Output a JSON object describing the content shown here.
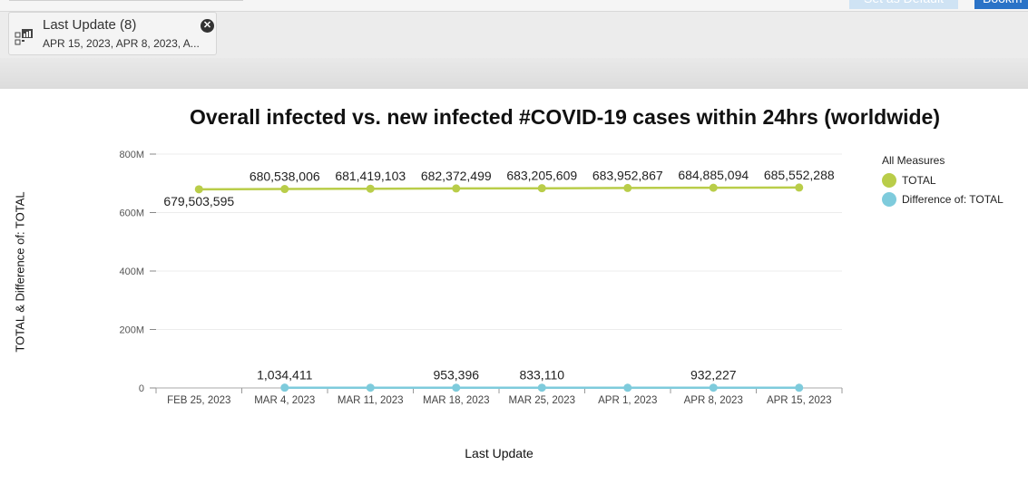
{
  "toolbar": {
    "set_default_label": "Set as Default",
    "bookmark_label": "Bookm"
  },
  "filter_chip": {
    "title": "Last Update (8)",
    "subtitle": "APR 15, 2023, APR 8, 2023, A...",
    "close_icon": "close-icon",
    "icon": "chart-filter-icon"
  },
  "colors": {
    "total": "#b9cd49",
    "difference": "#7ecbdc",
    "set_default_bg": "#cfe3f4",
    "bookmark_bg": "#2a73c7"
  },
  "chart_data": {
    "type": "line",
    "title": "Overall infected vs. new infected #COVID-19 cases within 24hrs (worldwide)",
    "xlabel": "Last Update",
    "ylabel": "TOTAL & Difference of: TOTAL",
    "categories": [
      "FEB 25, 2023",
      "MAR 4, 2023",
      "MAR 11, 2023",
      "MAR 18, 2023",
      "MAR 25, 2023",
      "APR 1, 2023",
      "APR 8, 2023",
      "APR 15, 2023"
    ],
    "ylim": [
      0,
      800000000
    ],
    "yticks": [
      {
        "value": 0,
        "label": "0"
      },
      {
        "value": 200000000,
        "label": "200M"
      },
      {
        "value": 400000000,
        "label": "400M"
      },
      {
        "value": 600000000,
        "label": "600M"
      },
      {
        "value": 800000000,
        "label": "800M"
      }
    ],
    "legend_title": "All Measures",
    "legend_position": "right",
    "grid": true,
    "series": [
      {
        "name": "TOTAL",
        "color": "#b9cd49",
        "values": [
          679503595,
          680538006,
          681419103,
          682372499,
          683205609,
          683952867,
          684885094,
          685552288
        ],
        "labels": [
          "679,503,595",
          "680,538,006",
          "681,419,103",
          "682,372,499",
          "683,205,609",
          "683,952,867",
          "684,885,094",
          "685,552,288"
        ]
      },
      {
        "name": "Difference of: TOTAL",
        "color": "#7ecbdc",
        "values": [
          null,
          1034411,
          881097,
          953396,
          833110,
          747258,
          932227,
          667194
        ],
        "labels": [
          "",
          "1,034,411",
          "",
          "953,396",
          "833,110",
          "",
          "932,227",
          ""
        ]
      }
    ]
  }
}
